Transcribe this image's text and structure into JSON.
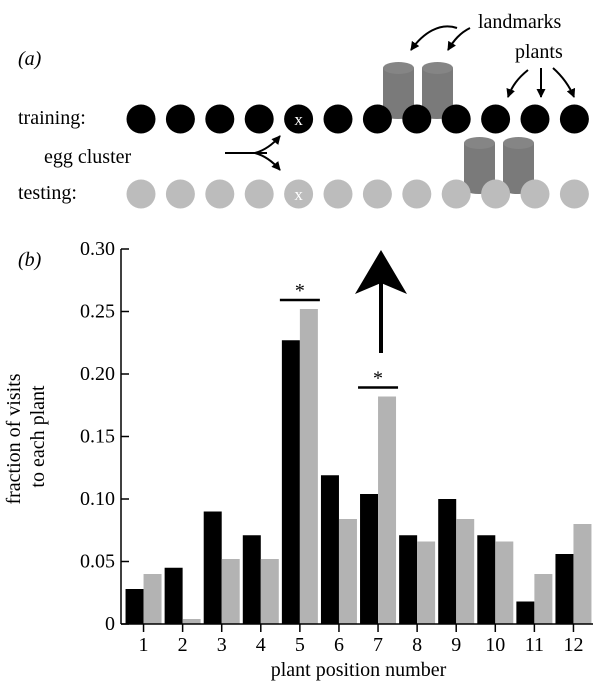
{
  "panel_a": {
    "label": "(a)",
    "row_labels": {
      "training": "training:",
      "testing": "testing:"
    },
    "annotations": {
      "landmarks": "landmarks",
      "plants": "plants",
      "egg_cluster": "egg cluster"
    },
    "egg_marker": "x",
    "plant_count": 12,
    "egg_plant_position": 5,
    "colors": {
      "training_plant": "#000000",
      "testing_plant": "#bcbcbc",
      "landmark": "#7a7a7a"
    }
  },
  "panel_b": {
    "label": "(b)"
  },
  "chart_data": {
    "type": "bar",
    "categories": [
      "1",
      "2",
      "3",
      "4",
      "5",
      "6",
      "7",
      "8",
      "9",
      "10",
      "11",
      "12"
    ],
    "series": [
      {
        "values": [
          0.028,
          0.045,
          0.09,
          0.071,
          0.227,
          0.119,
          0.104,
          0.071,
          0.1,
          0.071,
          0.018,
          0.056
        ],
        "color": "#000000"
      },
      {
        "values": [
          0.04,
          0.004,
          0.052,
          0.052,
          0.252,
          0.084,
          0.182,
          0.066,
          0.084,
          0.066,
          0.04,
          0.08
        ],
        "color": "#b3b3b3"
      }
    ],
    "xlabel": "plant position number",
    "ylabel_lines": [
      "fraction of visits",
      "to each plant"
    ],
    "ylim": [
      0,
      0.3
    ],
    "yticks": [
      "0",
      "0.05",
      "0.10",
      "0.15",
      "0.20",
      "0.25",
      "0.30"
    ],
    "significance": [
      {
        "category": "5",
        "label": "*"
      },
      {
        "category": "7",
        "label": "*"
      }
    ],
    "grid": false
  }
}
